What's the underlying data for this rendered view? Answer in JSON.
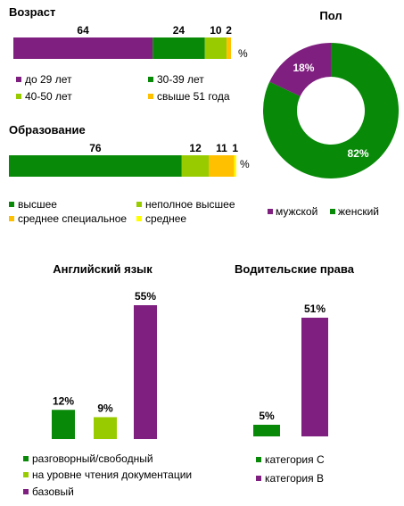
{
  "colors": {
    "purple": "#7f1f7f",
    "green": "#088908",
    "lightgreen": "#99cc00",
    "orange": "#ffc000",
    "yellow": "#ffff00"
  },
  "chart_data": [
    {
      "type": "bar",
      "orientation": "horizontal-stacked",
      "title": "Возраст",
      "unit": "%",
      "series": [
        {
          "name": "до 29 лет",
          "values": [
            64
          ],
          "color": "#7f1f7f"
        },
        {
          "name": "30-39 лет",
          "values": [
            24
          ],
          "color": "#088908"
        },
        {
          "name": "40-50 лет",
          "values": [
            10
          ],
          "color": "#99cc00"
        },
        {
          "name": "свыше 51 года",
          "values": [
            2
          ],
          "color": "#ffc000"
        }
      ],
      "legend": "bottom"
    },
    {
      "type": "bar",
      "orientation": "horizontal-stacked",
      "title": "Образование",
      "unit": "%",
      "series": [
        {
          "name": "высшее",
          "values": [
            76
          ],
          "color": "#088908"
        },
        {
          "name": "неполное высшее",
          "values": [
            12
          ],
          "color": "#99cc00"
        },
        {
          "name": "среднее специальное",
          "values": [
            11
          ],
          "color": "#ffc000"
        },
        {
          "name": "среднее",
          "values": [
            1
          ],
          "color": "#ffff00"
        }
      ],
      "legend": "bottom"
    },
    {
      "type": "pie",
      "variant": "doughnut",
      "title": "Пол",
      "slices": [
        {
          "name": "женский",
          "value": 82,
          "label": "82%",
          "color": "#088908"
        },
        {
          "name": "мужской",
          "value": 18,
          "label": "18%",
          "color": "#7f1f7f"
        }
      ],
      "legend_order": [
        "мужской",
        "женский"
      ],
      "legend": "bottom"
    },
    {
      "type": "bar",
      "title": "Английский язык",
      "series": [
        {
          "name": "разговорный/свободный",
          "values": [
            12
          ],
          "label": "12%",
          "color": "#088908"
        },
        {
          "name": "на уровне чтения документации",
          "values": [
            9
          ],
          "label": "9%",
          "color": "#99cc00"
        },
        {
          "name": "базовый",
          "values": [
            55
          ],
          "label": "55%",
          "color": "#7f1f7f"
        }
      ],
      "legend": "bottom"
    },
    {
      "type": "bar",
      "title": "Водительские права",
      "series": [
        {
          "name": "категория С",
          "values": [
            5
          ],
          "label": "5%",
          "color": "#088908"
        },
        {
          "name": "категория В",
          "values": [
            51
          ],
          "label": "51%",
          "color": "#7f1f7f"
        }
      ],
      "legend": "bottom"
    }
  ]
}
